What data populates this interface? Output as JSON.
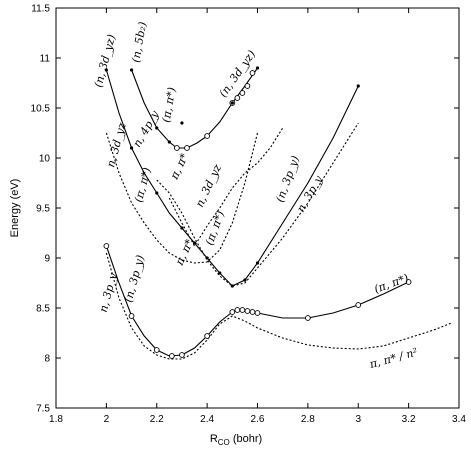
{
  "chart_data": {
    "type": "line",
    "title": "",
    "xlabel": "R",
    "xlabel_sub": "CO",
    "xlabel_unit": " (bohr)",
    "ylabel": "Energy (eV)",
    "xlim": [
      1.8,
      3.4
    ],
    "ylim": [
      7.5,
      11.5
    ],
    "xticks": [
      "1.8",
      "2",
      "2.2",
      "2.4",
      "2.6",
      "2.8",
      "3",
      "3.2",
      "3.4"
    ],
    "yticks": [
      "7.5",
      "8",
      "8.5",
      "9",
      "9.5",
      "10",
      "10.5",
      "11",
      "11.5"
    ],
    "grid": false,
    "series": [
      {
        "style": "solid",
        "color": "#000000",
        "x": [
          2.0,
          2.05,
          2.1,
          2.15,
          2.2,
          2.25,
          2.3,
          2.35,
          2.4,
          2.45,
          2.5,
          2.55,
          2.6,
          2.7,
          2.8,
          2.9,
          3.0,
          3.1,
          3.2
        ],
        "y": [
          9.12,
          8.75,
          8.42,
          8.22,
          8.08,
          8.02,
          8.03,
          8.1,
          8.22,
          8.36,
          8.46,
          8.48,
          8.45,
          8.4,
          8.4,
          8.45,
          8.53,
          8.64,
          8.76
        ]
      },
      {
        "style": "solid",
        "color": "#000000",
        "x": [
          2.0,
          2.05,
          2.1,
          2.15,
          2.2,
          2.25,
          2.3,
          2.35,
          2.4,
          2.45,
          2.5,
          2.55,
          2.6,
          2.7,
          2.8,
          2.9,
          3.0
        ],
        "y": [
          10.88,
          10.45,
          10.1,
          9.85,
          9.65,
          9.45,
          9.3,
          9.15,
          9.0,
          8.85,
          8.72,
          8.78,
          8.95,
          9.35,
          9.75,
          10.2,
          10.72
        ]
      },
      {
        "style": "solid",
        "color": "#000000",
        "x": [
          2.1,
          2.15,
          2.2,
          2.25,
          2.28,
          2.32,
          2.36,
          2.4,
          2.45,
          2.5,
          2.55,
          2.6
        ],
        "y": [
          10.88,
          10.55,
          10.3,
          10.16,
          10.1,
          10.1,
          10.15,
          10.22,
          10.36,
          10.55,
          10.72,
          10.9
        ]
      },
      {
        "style": "dotted",
        "color": "#000000",
        "x": [
          2.0,
          2.05,
          2.1,
          2.15,
          2.2,
          2.25,
          2.3,
          2.35,
          2.4,
          2.45,
          2.5,
          2.55,
          2.6,
          2.7,
          2.8,
          2.9,
          3.0,
          3.1,
          3.2,
          3.3,
          3.37
        ],
        "y": [
          9.05,
          8.6,
          8.3,
          8.12,
          8.03,
          7.99,
          7.99,
          8.05,
          8.18,
          8.34,
          8.42,
          8.37,
          8.3,
          8.2,
          8.13,
          8.1,
          8.09,
          8.12,
          8.2,
          8.28,
          8.35
        ]
      },
      {
        "style": "dotted",
        "color": "#000000",
        "x": [
          2.0,
          2.05,
          2.1,
          2.15,
          2.2,
          2.25,
          2.3,
          2.35,
          2.4,
          2.45,
          2.5,
          2.55,
          2.6
        ],
        "y": [
          10.25,
          9.85,
          9.55,
          9.35,
          9.18,
          9.05,
          8.98,
          8.95,
          8.96,
          9.08,
          9.35,
          9.75,
          10.25
        ]
      },
      {
        "style": "dotted",
        "color": "#000000",
        "x": [
          2.2,
          2.25,
          2.3,
          2.35,
          2.4,
          2.45,
          2.5,
          2.55,
          2.6,
          2.7,
          2.8,
          2.9,
          3.0
        ],
        "y": [
          9.78,
          9.65,
          9.45,
          9.2,
          8.98,
          8.82,
          8.72,
          8.75,
          8.9,
          9.2,
          9.55,
          9.95,
          10.35
        ]
      },
      {
        "style": "dotted",
        "color": "#000000",
        "x": [
          2.25,
          2.3,
          2.35,
          2.4,
          2.45,
          2.5,
          2.55,
          2.6,
          2.65,
          2.7
        ],
        "y": [
          9.6,
          9.35,
          9.12,
          9.32,
          9.5,
          9.7,
          9.85,
          9.95,
          10.1,
          10.3
        ]
      }
    ],
    "markers": [
      {
        "style": "circle",
        "x": [
          2.0,
          2.1,
          2.2,
          2.26,
          2.3,
          2.4,
          2.5,
          2.52,
          2.54,
          2.56,
          2.58,
          2.6,
          2.8,
          3.0,
          3.2
        ],
        "y": [
          9.12,
          8.42,
          8.08,
          8.02,
          8.03,
          8.22,
          8.46,
          8.48,
          8.48,
          8.47,
          8.46,
          8.45,
          8.4,
          8.53,
          8.76
        ]
      },
      {
        "style": "circle",
        "x": [
          2.28,
          2.32,
          2.4,
          2.5,
          2.52,
          2.54,
          2.56,
          2.58
        ],
        "y": [
          10.1,
          10.1,
          10.22,
          10.55,
          10.6,
          10.65,
          10.72,
          10.85
        ]
      },
      {
        "style": "dot",
        "x": [
          2.0,
          2.1,
          2.2,
          2.25,
          2.3,
          2.35,
          2.4,
          2.45,
          2.5,
          2.55,
          2.6,
          3.0
        ],
        "y": [
          10.88,
          10.1,
          9.65,
          10.16,
          10.35,
          9.15,
          9.0,
          8.85,
          8.72,
          8.78,
          8.95,
          10.72
        ]
      },
      {
        "style": "dot",
        "x": [
          2.1,
          2.2,
          2.3,
          2.5,
          2.6
        ],
        "y": [
          10.88,
          10.3,
          9.3,
          10.55,
          10.9
        ]
      }
    ],
    "annotations": [
      {
        "text": "(n, 5b₂)",
        "x": 2.13,
        "y": 10.95,
        "rotate": -80
      },
      {
        "text": "(n, 3d_yz)",
        "x": 2.47,
        "y": 10.6,
        "rotate": -55
      },
      {
        "text": "(π, π*)",
        "x": 2.25,
        "y": 10.35,
        "rotate": -80
      },
      {
        "text": "(n, 3d_yz)",
        "x": 1.98,
        "y": 10.7,
        "rotate": -75
      },
      {
        "text": "n, 4p_y",
        "x": 2.13,
        "y": 10.1,
        "rotate": -60
      },
      {
        "text": "n, 3d_yz",
        "x": 2.03,
        "y": 9.9,
        "rotate": -75
      },
      {
        "text": "(π, π*)",
        "x": 2.14,
        "y": 9.55,
        "rotate": -75
      },
      {
        "text": "π, π*",
        "x": 2.28,
        "y": 9.78,
        "rotate": -65
      },
      {
        "text": "n, 3d_yz",
        "x": 2.38,
        "y": 9.5,
        "rotate": -65
      },
      {
        "text": "(π, π*)",
        "x": 2.42,
        "y": 9.12,
        "rotate": -70
      },
      {
        "text": "π, π*",
        "x": 2.3,
        "y": 8.92,
        "rotate": -65
      },
      {
        "text": "(n, 3p_y)",
        "x": 2.7,
        "y": 9.55,
        "rotate": -70
      },
      {
        "text": "n, 3p_y",
        "x": 2.78,
        "y": 9.45,
        "rotate": -60
      },
      {
        "text": "(n, 3p_y)",
        "x": 2.1,
        "y": 8.55,
        "rotate": -75
      },
      {
        "text": "n, 3p_y",
        "x": 2.0,
        "y": 8.45,
        "rotate": -75
      },
      {
        "text": "(π, π*)",
        "x": 3.07,
        "y": 8.65,
        "rotate": -20
      },
      {
        "text": "π, π* / n²",
        "x": 3.05,
        "y": 7.9,
        "rotate": -15
      }
    ]
  }
}
